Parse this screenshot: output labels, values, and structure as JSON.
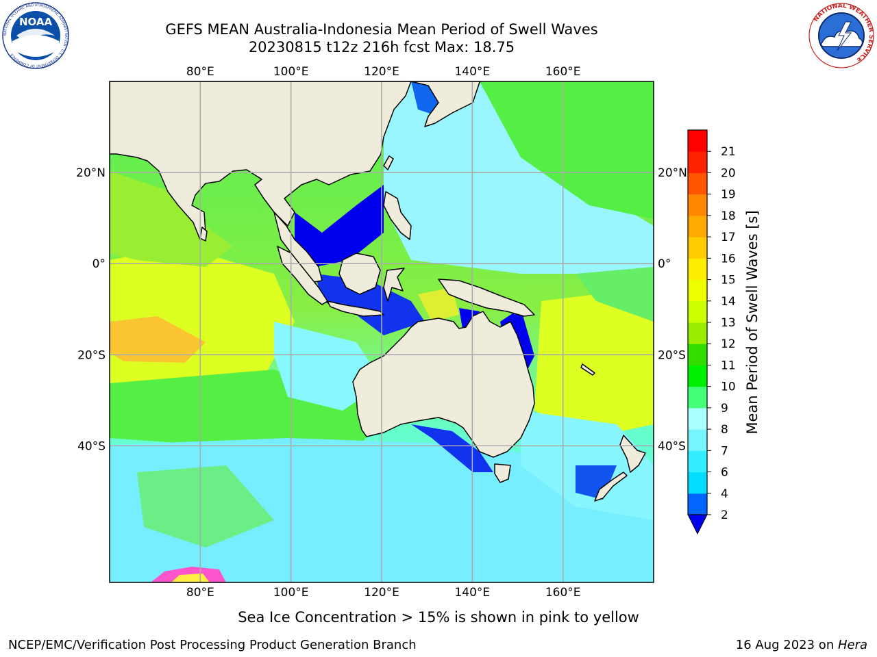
{
  "title": {
    "line1": "GEFS MEAN Australia-Indonesia Mean Period of Swell Waves",
    "line2": "20230815 t12z 216h fcst   Max: 18.75"
  },
  "map": {
    "extent": {
      "lon": [
        60,
        180
      ],
      "lat": [
        -70,
        40
      ]
    },
    "lon_ticks": [
      {
        "value": 80,
        "label": "80°E"
      },
      {
        "value": 100,
        "label": "100°E"
      },
      {
        "value": 120,
        "label": "120°E"
      },
      {
        "value": 140,
        "label": "140°E"
      },
      {
        "value": 160,
        "label": "160°E"
      }
    ],
    "lat_ticks": [
      {
        "value": 20,
        "label": "20°N"
      },
      {
        "value": 0,
        "label": "0°"
      },
      {
        "value": -20,
        "label": "20°S"
      },
      {
        "value": -40,
        "label": "40°S"
      }
    ],
    "land_color": "#efecdc",
    "grid_color": "#aaaaaa"
  },
  "colorbar": {
    "label": "Mean Period of Swell Waves [s]",
    "levels": [
      2,
      4,
      6,
      7,
      8,
      9,
      10,
      11,
      12,
      13,
      14,
      15,
      16,
      17,
      18,
      19,
      20,
      21
    ],
    "tick_labels": [
      "2",
      "4",
      "6",
      "7",
      "8",
      "9",
      "10",
      "11",
      "12",
      "13",
      "14",
      "15",
      "16",
      "17",
      "18",
      "19",
      "20",
      "21"
    ],
    "colors": [
      "#0066ff",
      "#00ddff",
      "#33eeff",
      "#77f5ff",
      "#aaffff",
      "#44ff77",
      "#00ee00",
      "#33dd00",
      "#99ee00",
      "#ccff00",
      "#eeff00",
      "#ffee00",
      "#ffcc00",
      "#ffaa00",
      "#ff8800",
      "#ff5500",
      "#ff2200",
      "#ff0000"
    ],
    "under_color": "#0000ee"
  },
  "caption": "Sea Ice Concentration > 15% is shown in pink to yellow",
  "footer": {
    "left": "NCEP/EMC/Verification Post Processing Product Generation Branch",
    "date": "16 Aug 2023 on ",
    "machine": "Hera"
  },
  "icons": {
    "left_logo": "noaa-logo-icon",
    "right_logo": "nws-logo-icon"
  },
  "logo_text": {
    "noaa": "NOAA",
    "noaa_ring": "NATIONAL OCEANIC AND ATMOSPHERIC ADMINISTRATION · U.S. DEPARTMENT OF COMMERCE",
    "nws_ring": "NATIONAL WEATHER SERVICE"
  }
}
